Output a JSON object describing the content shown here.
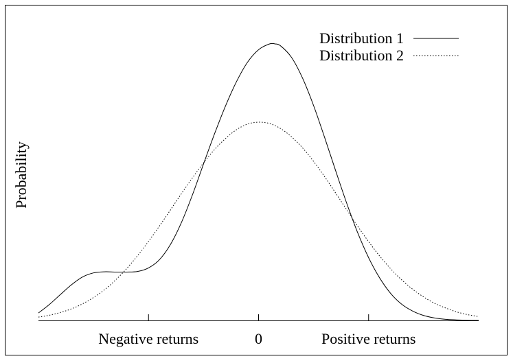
{
  "chart_data": {
    "type": "line",
    "title": "",
    "xlabel": "",
    "ylabel": "Probability",
    "grid": false,
    "legend_position": "top-right",
    "xlim": [
      -2,
      2
    ],
    "ylim": [
      0,
      1
    ],
    "x_ticks": [
      {
        "value": -1,
        "label": "Negative returns"
      },
      {
        "value": 0,
        "label": "0"
      },
      {
        "value": 1,
        "label": "Positive returns"
      }
    ],
    "series": [
      {
        "name": "Distribution 1",
        "style": "solid",
        "x": [
          -2.0,
          -1.9,
          -1.8,
          -1.7,
          -1.6,
          -1.5,
          -1.4,
          -1.3,
          -1.2,
          -1.1,
          -1.0,
          -0.9,
          -0.8,
          -0.7,
          -0.6,
          -0.5,
          -0.4,
          -0.3,
          -0.2,
          -0.1,
          0.0,
          0.1,
          0.15,
          0.2,
          0.3,
          0.4,
          0.5,
          0.6,
          0.7,
          0.8,
          0.9,
          1.0,
          1.1,
          1.2,
          1.3,
          1.4,
          1.5,
          1.6,
          1.7,
          1.8,
          1.9,
          2.0
        ],
        "y": [
          0.027,
          0.058,
          0.094,
          0.129,
          0.157,
          0.172,
          0.176,
          0.175,
          0.175,
          0.177,
          0.19,
          0.22,
          0.275,
          0.355,
          0.455,
          0.566,
          0.675,
          0.776,
          0.864,
          0.934,
          0.979,
          1.0,
          1.0,
          0.993,
          0.951,
          0.876,
          0.777,
          0.662,
          0.542,
          0.425,
          0.318,
          0.227,
          0.154,
          0.098,
          0.059,
          0.034,
          0.018,
          0.009,
          0.004,
          0.002,
          0.0007,
          0.0002
        ]
      },
      {
        "name": "Distribution 2",
        "style": "dotted",
        "x": [
          -2.0,
          -1.9,
          -1.8,
          -1.7,
          -1.6,
          -1.5,
          -1.4,
          -1.3,
          -1.2,
          -1.1,
          -1.0,
          -0.9,
          -0.8,
          -0.7,
          -0.6,
          -0.5,
          -0.4,
          -0.3,
          -0.2,
          -0.1,
          0.0,
          0.1,
          0.2,
          0.3,
          0.4,
          0.5,
          0.6,
          0.7,
          0.8,
          0.9,
          1.0,
          1.1,
          1.2,
          1.3,
          1.4,
          1.5,
          1.6,
          1.7,
          1.8,
          1.9,
          2.0
        ],
        "y": [
          0.012,
          0.019,
          0.029,
          0.042,
          0.06,
          0.083,
          0.111,
          0.146,
          0.187,
          0.234,
          0.286,
          0.342,
          0.4,
          0.459,
          0.516,
          0.57,
          0.618,
          0.658,
          0.69,
          0.71,
          0.717,
          0.712,
          0.694,
          0.664,
          0.624,
          0.575,
          0.52,
          0.461,
          0.401,
          0.341,
          0.285,
          0.233,
          0.187,
          0.147,
          0.113,
          0.085,
          0.062,
          0.045,
          0.031,
          0.021,
          0.014
        ]
      }
    ]
  }
}
